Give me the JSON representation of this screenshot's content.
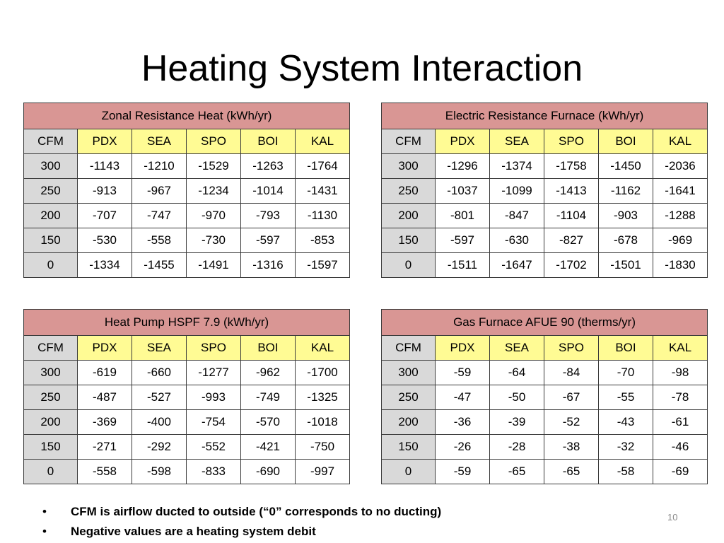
{
  "slide": {
    "title": "Heating System Interaction",
    "page_number": "10",
    "bullets": [
      "CFM is airflow ducted to outside (“0” corresponds to no ducting)",
      "Negative values are a heating system debit"
    ]
  },
  "colors": {
    "table_title_bg": "#d99694",
    "city_header_bg": "#fffb94",
    "cfm_column_bg": "#d9d9d9"
  },
  "tables": [
    {
      "title": "Zonal Resistance Heat (kWh/yr)",
      "columns": [
        "CFM",
        "PDX",
        "SEA",
        "SPO",
        "BOI",
        "KAL"
      ],
      "rows": [
        [
          "300",
          "-1143",
          "-1210",
          "-1529",
          "-1263",
          "-1764"
        ],
        [
          "250",
          "-913",
          "-967",
          "-1234",
          "-1014",
          "-1431"
        ],
        [
          "200",
          "-707",
          "-747",
          "-970",
          "-793",
          "-1130"
        ],
        [
          "150",
          "-530",
          "-558",
          "-730",
          "-597",
          "-853"
        ],
        [
          "0",
          "-1334",
          "-1455",
          "-1491",
          "-1316",
          "-1597"
        ]
      ]
    },
    {
      "title": "Electric Resistance Furnace (kWh/yr)",
      "columns": [
        "CFM",
        "PDX",
        "SEA",
        "SPO",
        "BOI",
        "KAL"
      ],
      "rows": [
        [
          "300",
          "-1296",
          "-1374",
          "-1758",
          "-1450",
          "-2036"
        ],
        [
          "250",
          "-1037",
          "-1099",
          "-1413",
          "-1162",
          "-1641"
        ],
        [
          "200",
          "-801",
          "-847",
          "-1104",
          "-903",
          "-1288"
        ],
        [
          "150",
          "-597",
          "-630",
          "-827",
          "-678",
          "-969"
        ],
        [
          "0",
          "-1511",
          "-1647",
          "-1702",
          "-1501",
          "-1830"
        ]
      ]
    },
    {
      "title": "Heat Pump HSPF 7.9 (kWh/yr)",
      "columns": [
        "CFM",
        "PDX",
        "SEA",
        "SPO",
        "BOI",
        "KAL"
      ],
      "rows": [
        [
          "300",
          "-619",
          "-660",
          "-1277",
          "-962",
          "-1700"
        ],
        [
          "250",
          "-487",
          "-527",
          "-993",
          "-749",
          "-1325"
        ],
        [
          "200",
          "-369",
          "-400",
          "-754",
          "-570",
          "-1018"
        ],
        [
          "150",
          "-271",
          "-292",
          "-552",
          "-421",
          "-750"
        ],
        [
          "0",
          "-558",
          "-598",
          "-833",
          "-690",
          "-997"
        ]
      ]
    },
    {
      "title": "Gas Furnace AFUE 90 (therms/yr)",
      "columns": [
        "CFM",
        "PDX",
        "SEA",
        "SPO",
        "BOI",
        "KAL"
      ],
      "rows": [
        [
          "300",
          "-59",
          "-64",
          "-84",
          "-70",
          "-98"
        ],
        [
          "250",
          "-47",
          "-50",
          "-67",
          "-55",
          "-78"
        ],
        [
          "200",
          "-36",
          "-39",
          "-52",
          "-43",
          "-61"
        ],
        [
          "150",
          "-26",
          "-28",
          "-38",
          "-32",
          "-46"
        ],
        [
          "0",
          "-59",
          "-65",
          "-65",
          "-58",
          "-69"
        ]
      ]
    }
  ]
}
